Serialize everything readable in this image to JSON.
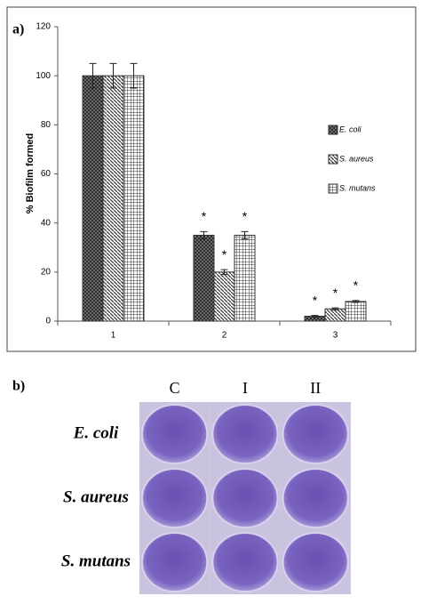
{
  "chart_data": {
    "type": "bar",
    "panel_label": "a)",
    "ylabel": "% Biofilm formed",
    "categories": [
      "1",
      "2",
      "3"
    ],
    "ylim": [
      0,
      120
    ],
    "yticks": [
      0,
      20,
      40,
      60,
      80,
      100,
      120
    ],
    "grid": false,
    "legend": "right",
    "series": [
      {
        "name": "E. coli",
        "color": "#333333",
        "pattern": "crosshatch",
        "values": [
          100,
          35,
          2
        ],
        "errors": [
          5,
          1.5,
          0.3
        ],
        "markers": [
          null,
          "*",
          "*"
        ]
      },
      {
        "name": "S. aureus",
        "color": "#333333",
        "pattern": "diagonal",
        "values": [
          100,
          20,
          5
        ],
        "errors": [
          5,
          1,
          0.4
        ],
        "markers": [
          null,
          "*",
          "*"
        ]
      },
      {
        "name": "S. mutans",
        "color": "#333333",
        "pattern": "grid",
        "values": [
          100,
          35,
          8
        ],
        "errors": [
          5,
          1.5,
          0.4
        ],
        "markers": [
          null,
          "*",
          "*"
        ]
      }
    ]
  },
  "panel_b": {
    "label": "b)",
    "columns": [
      "C",
      "I",
      "II"
    ],
    "rows": [
      "E. coli",
      "S. aureus",
      "S. mutans"
    ]
  }
}
